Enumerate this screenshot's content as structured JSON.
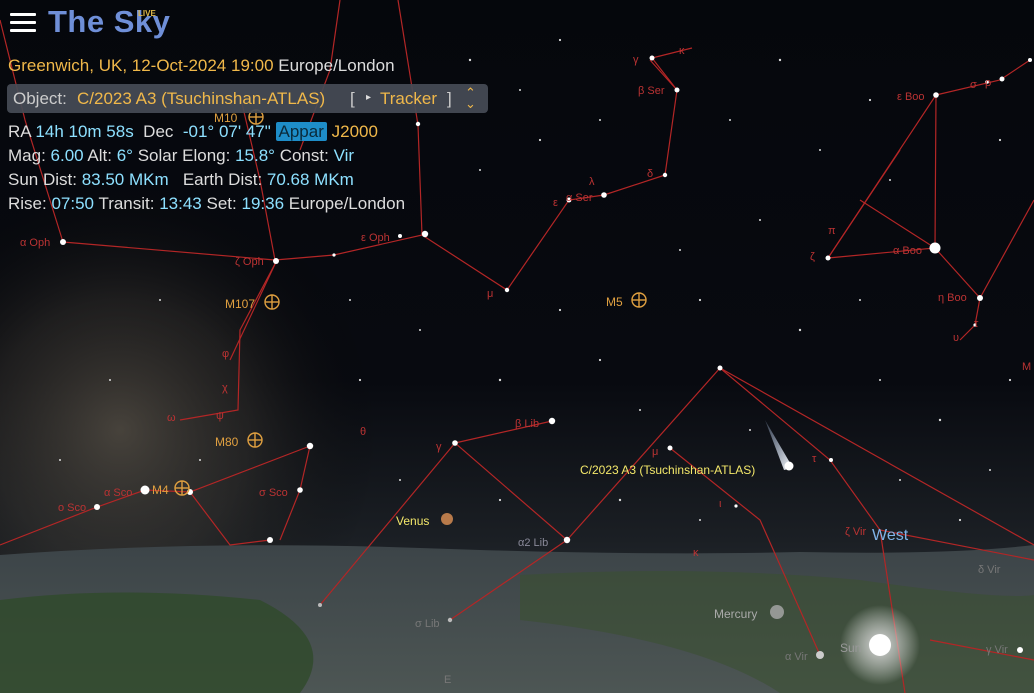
{
  "app": {
    "title": "The Sky",
    "superscript": "LIVE"
  },
  "location": {
    "place": "Greenwich, UK, 12-Oct-2024 19:00",
    "timezone": "Europe/London"
  },
  "object": {
    "label": "Object:",
    "name": "C/2023 A3 (Tsuchinshan-ATLAS)",
    "bracket_open": "[",
    "tracker_icon": "play-triangle-icon",
    "tracker": "Tracker",
    "bracket_close": "]",
    "expand_icon": "chevrons-icon"
  },
  "coords": {
    "ra_label": "RA",
    "ra": "14h 10m 58s",
    "dec_label": "Dec",
    "dec": "-01° 07' 47\"",
    "appar": "Appar",
    "j2000": "J2000"
  },
  "stats": {
    "mag_label": "Mag:",
    "mag": "6.00",
    "alt_label": "Alt:",
    "alt": "6°",
    "elong_label": "Solar Elong:",
    "elong": "15.8°",
    "const_label": "Const:",
    "const": "Vir"
  },
  "dist": {
    "sun_label": "Sun Dist:",
    "sun": "83.50 MKm",
    "earth_label": "Earth Dist:",
    "earth": "70.68 MKm"
  },
  "times": {
    "rise_label": "Rise:",
    "rise": "07:50",
    "transit_label": "Transit:",
    "transit": "13:43",
    "set_label": "Set:",
    "set": "19:36",
    "tz": "Europe/London"
  },
  "sky_labels": {
    "gamma_ser": "γ",
    "kappa_ser": "κ",
    "beta_ser": "β Ser",
    "eps_boo": "ε Boo",
    "sigma_boo": "σ",
    "rho_boo": "ρ",
    "m10": "M10",
    "lambda_ser": "λ",
    "delta_ser": "δ",
    "eps_ser": "ε",
    "alpha_ser": "α Ser",
    "pi_boo": "π",
    "zeta_boo": "ζ",
    "alpha_boo": "α Boo",
    "eps_oph": "ε Oph",
    "alpha_oph": "α Oph",
    "zeta_oph": "ζ Oph",
    "mu_ser": "μ",
    "m5": "M5",
    "m107": "M107",
    "eta_boo": "η Boo",
    "tau_boo": "τ",
    "upsilon_boo": "υ",
    "m_edge": "M",
    "phi_oph": "φ",
    "chi_oph": "χ",
    "omega_oph": "ω",
    "psi_oph": "ψ",
    "theta_lib": "θ",
    "beta_lib": "β Lib",
    "m80": "M80",
    "gamma_lib": "γ",
    "mu_vir": "μ",
    "tau_vir": "τ",
    "iota_vir": "ι",
    "alpha_sco": "α Sco",
    "m4": "M4",
    "sigma_sco": "σ Sco",
    "omicron_sco": "ο Sco",
    "venus": "Venus",
    "alpha2_lib": "α2 Lib",
    "kappa_vir": "κ",
    "zeta_vir": "ζ Vir",
    "west": "West",
    "delta_vir": "δ Vir",
    "mercury": "Mercury",
    "sigma_lib": "σ Lib",
    "sun": "Sun",
    "alpha_vir": "α Vir",
    "gamma_vir": "γ Vir",
    "east_e": "E"
  },
  "comet_label": "C/2023 A3 (Tsuchinshan-ATLAS)"
}
